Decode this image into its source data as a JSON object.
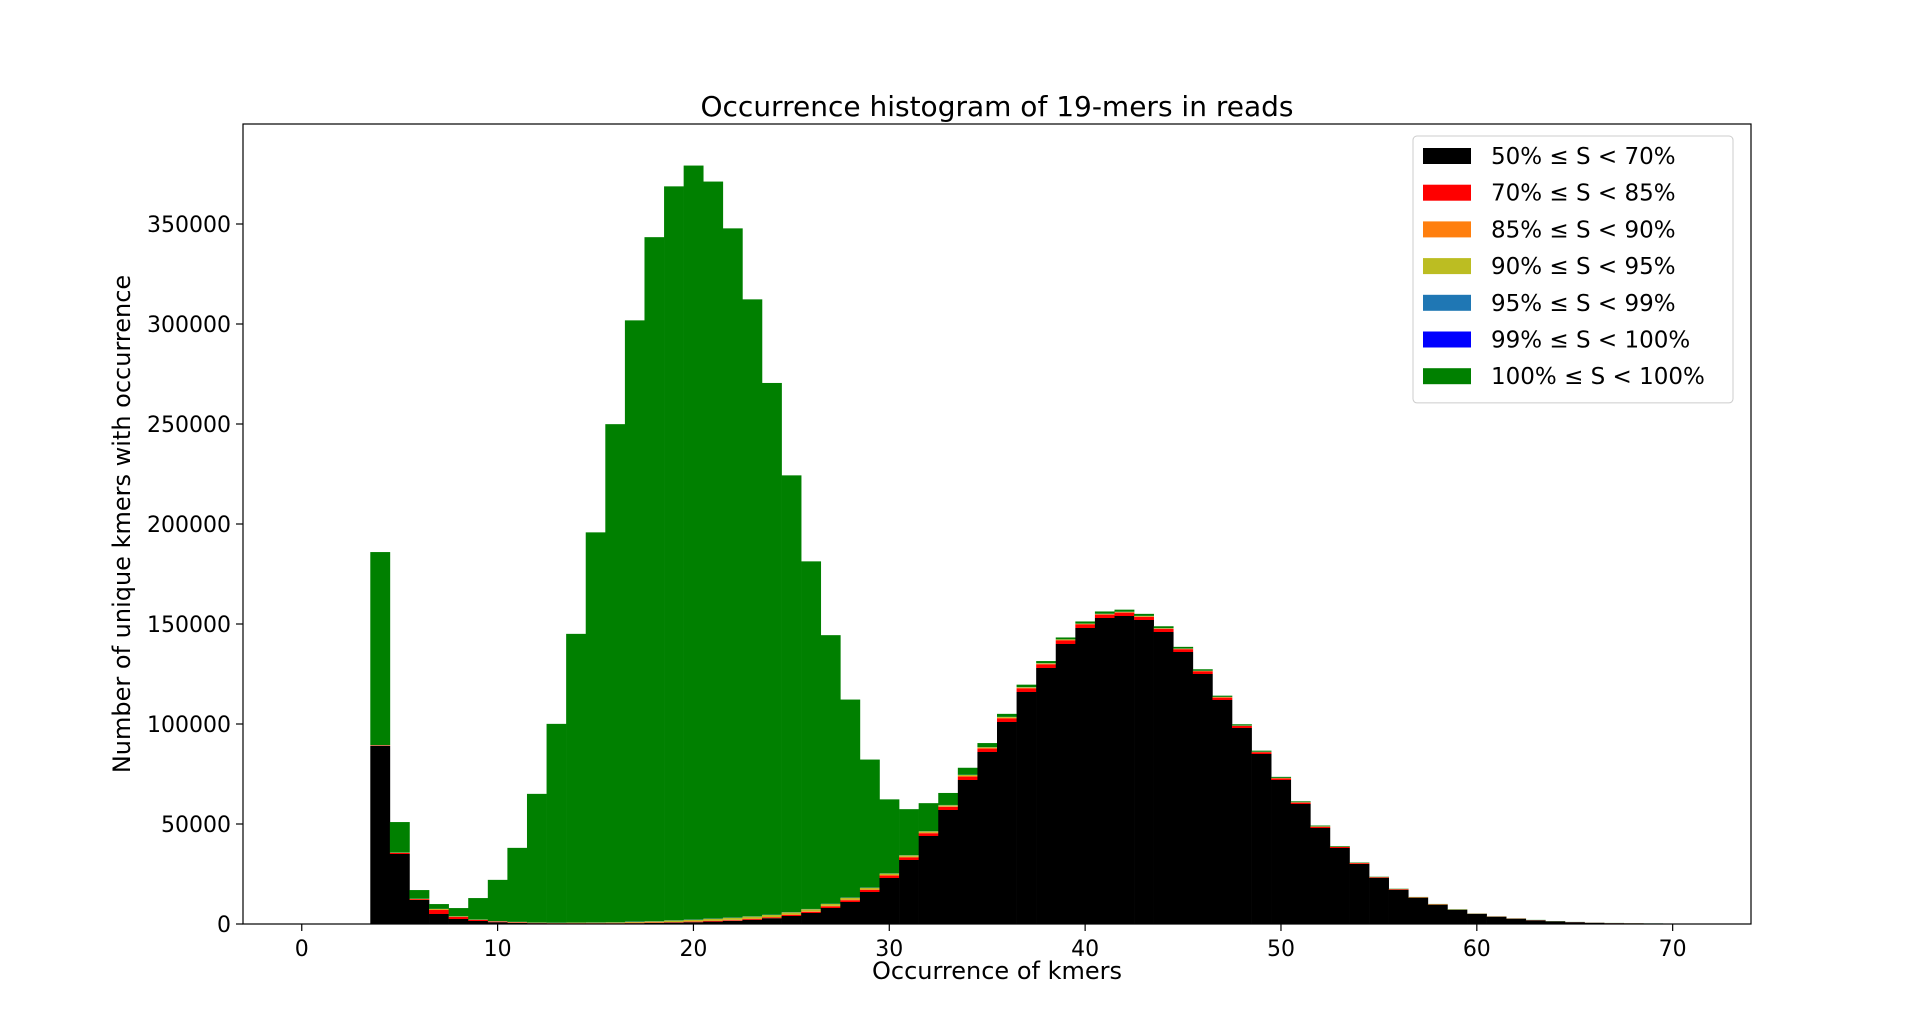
{
  "chart_data": {
    "type": "bar",
    "stacked": true,
    "title": "Occurrence histogram of 19-mers in reads",
    "xlabel": "Occurrence of kmers",
    "ylabel": "Number of unique kmers with occurrence",
    "xlim": [
      -3,
      74
    ],
    "ylim": [
      0,
      400000
    ],
    "xticks": [
      0,
      10,
      20,
      30,
      40,
      50,
      60,
      70
    ],
    "yticks": [
      0,
      50000,
      100000,
      150000,
      200000,
      250000,
      300000,
      350000
    ],
    "grid": false,
    "legend_position": "top-right",
    "x": [
      4,
      5,
      6,
      7,
      8,
      9,
      10,
      11,
      12,
      13,
      14,
      15,
      16,
      17,
      18,
      19,
      20,
      21,
      22,
      23,
      24,
      25,
      26,
      27,
      28,
      29,
      30,
      31,
      32,
      33,
      34,
      35,
      36,
      37,
      38,
      39,
      40,
      41,
      42,
      43,
      44,
      45,
      46,
      47,
      48,
      49,
      50,
      51,
      52,
      53,
      54,
      55,
      56,
      57,
      58,
      59,
      60,
      61,
      62,
      63,
      64,
      65,
      66,
      67,
      68,
      69,
      70
    ],
    "series": [
      {
        "name": "50% ≤ S < 70%",
        "color": "#000000",
        "values": [
          89000,
          35000,
          12000,
          5000,
          2500,
          1500,
          900,
          600,
          400,
          300,
          300,
          300,
          300,
          400,
          500,
          700,
          900,
          1200,
          1600,
          2100,
          2900,
          4000,
          5500,
          8000,
          11000,
          16000,
          23000,
          32000,
          44000,
          57000,
          72000,
          86000,
          101000,
          116000,
          128000,
          140000,
          148000,
          153000,
          154000,
          152000,
          146000,
          136000,
          125000,
          112000,
          98000,
          85000,
          72000,
          60000,
          48000,
          38000,
          30000,
          23000,
          17000,
          13000,
          9500,
          7000,
          5000,
          3600,
          2600,
          1800,
          1300,
          900,
          600,
          400,
          300,
          200,
          100
        ]
      },
      {
        "name": "70% ≤ S < 85%",
        "color": "#ff0000",
        "values": [
          200,
          500,
          400,
          2000,
          1000,
          500,
          300,
          200,
          100,
          100,
          100,
          100,
          100,
          200,
          200,
          200,
          300,
          300,
          300,
          400,
          400,
          500,
          600,
          800,
          900,
          1000,
          1200,
          1300,
          1400,
          1600,
          1700,
          1700,
          1800,
          1800,
          1800,
          1800,
          1800,
          1700,
          1700,
          1600,
          1500,
          1400,
          1300,
          1200,
          1000,
          900,
          800,
          700,
          600,
          500,
          400,
          300,
          300,
          200,
          200,
          100,
          100,
          100,
          100,
          100,
          50,
          50,
          50,
          50,
          50,
          20,
          20
        ]
      },
      {
        "name": "85% ≤ S < 90%",
        "color": "#ff7f0e",
        "values": [
          100,
          100,
          100,
          300,
          200,
          100,
          100,
          100,
          100,
          100,
          100,
          100,
          100,
          100,
          100,
          100,
          100,
          200,
          200,
          200,
          200,
          300,
          300,
          300,
          300,
          300,
          300,
          300,
          300,
          300,
          300,
          300,
          300,
          300,
          300,
          200,
          200,
          200,
          200,
          200,
          200,
          200,
          200,
          200,
          100,
          100,
          100,
          100,
          100,
          100,
          100,
          50,
          50,
          50,
          50,
          50,
          50,
          20,
          20,
          20,
          20,
          10,
          10,
          10,
          10,
          10,
          10
        ]
      },
      {
        "name": "90% ≤ S < 95%",
        "color": "#bcbd22",
        "values": [
          100,
          100,
          100,
          200,
          100,
          100,
          100,
          100,
          100,
          100,
          200,
          200,
          300,
          400,
          500,
          700,
          800,
          900,
          1000,
          1000,
          1000,
          1000,
          1000,
          900,
          900,
          800,
          700,
          700,
          600,
          500,
          500,
          400,
          400,
          300,
          300,
          300,
          200,
          200,
          200,
          200,
          200,
          100,
          100,
          100,
          100,
          100,
          100,
          100,
          100,
          50,
          50,
          50,
          50,
          50,
          50,
          20,
          20,
          20,
          20,
          20,
          10,
          10,
          10,
          10,
          10,
          10,
          10
        ]
      },
      {
        "name": "95% ≤ S < 99%",
        "color": "#1f77b4",
        "values": [
          50,
          50,
          50,
          50,
          50,
          50,
          50,
          50,
          50,
          50,
          50,
          100,
          100,
          100,
          100,
          100,
          100,
          100,
          100,
          100,
          100,
          100,
          100,
          100,
          100,
          100,
          100,
          100,
          100,
          100,
          100,
          50,
          50,
          50,
          50,
          50,
          50,
          50,
          50,
          50,
          50,
          50,
          50,
          50,
          50,
          50,
          50,
          20,
          20,
          20,
          20,
          20,
          20,
          20,
          20,
          10,
          10,
          10,
          10,
          10,
          10,
          10,
          10,
          10,
          10,
          10,
          10
        ]
      },
      {
        "name": "99% ≤ S < 100%",
        "color": "#0000ff",
        "values": [
          20,
          20,
          20,
          20,
          20,
          20,
          20,
          20,
          20,
          20,
          20,
          20,
          20,
          20,
          20,
          20,
          20,
          20,
          20,
          20,
          20,
          20,
          20,
          20,
          20,
          20,
          20,
          20,
          20,
          20,
          20,
          20,
          20,
          20,
          20,
          20,
          20,
          20,
          20,
          20,
          20,
          20,
          20,
          20,
          20,
          20,
          20,
          10,
          10,
          10,
          10,
          10,
          10,
          10,
          10,
          10,
          10,
          10,
          10,
          10,
          10,
          10,
          10,
          10,
          10,
          10,
          10
        ]
      },
      {
        "name": "100% ≤ S < 100%",
        "color": "#008000",
        "values": [
          96500,
          15200,
          4300,
          2400,
          4100,
          10700,
          20600,
          37000,
          64300,
          99400,
          144300,
          195000,
          249000,
          300600,
          342000,
          367000,
          377000,
          368500,
          344600,
          308500,
          265900,
          218400,
          173800,
          134300,
          99000,
          64000,
          37000,
          23000,
          14000,
          6000,
          3500,
          2000,
          1500,
          1200,
          1000,
          900,
          1000,
          1100,
          1000,
          1000,
          900,
          800,
          700,
          600,
          600,
          500,
          500,
          400,
          400,
          300,
          200,
          200,
          200,
          200,
          200,
          200,
          100,
          100,
          100,
          100,
          100,
          50,
          50,
          50,
          50,
          50,
          50
        ]
      }
    ]
  }
}
